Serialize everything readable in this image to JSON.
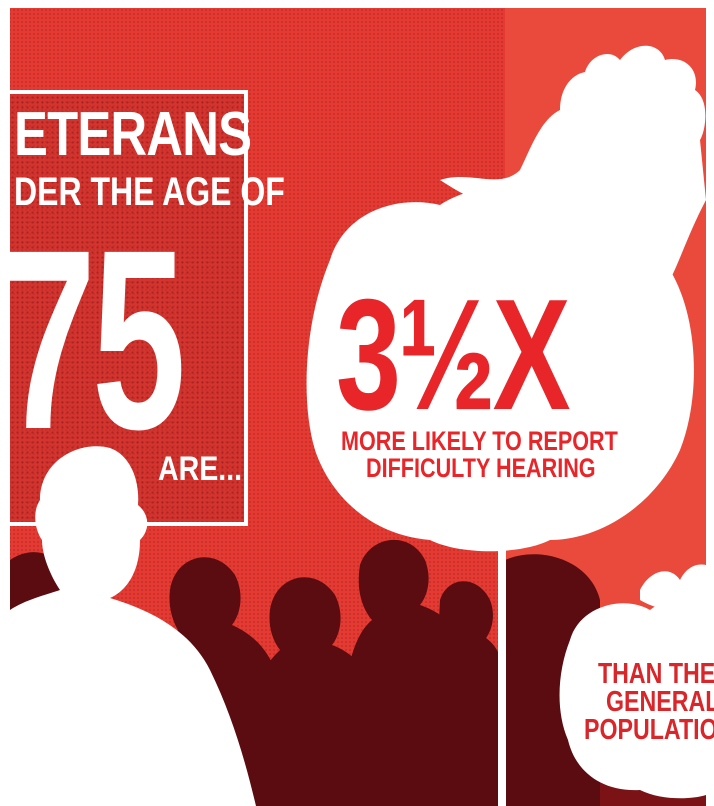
{
  "left_panel": {
    "line1": "ETERANS",
    "line2": "DER THE AGE OF",
    "age": "75",
    "line4": "ARE..."
  },
  "bubble": {
    "whole": "3",
    "fraction": "½",
    "suffix": "X",
    "line1": "MORE LIKELY TO REPORT",
    "line2": "DIFFICULTY HEARING"
  },
  "small_bubble": {
    "line1": "THAN THE",
    "line2": "GENERAL",
    "line3": "POPULATION"
  },
  "colors": {
    "background_red": "#e43a32",
    "panel_red": "#c8302c",
    "silhouette_dark": "#5a0c10",
    "accent_text_red": "#e8262a",
    "white": "#ffffff"
  }
}
